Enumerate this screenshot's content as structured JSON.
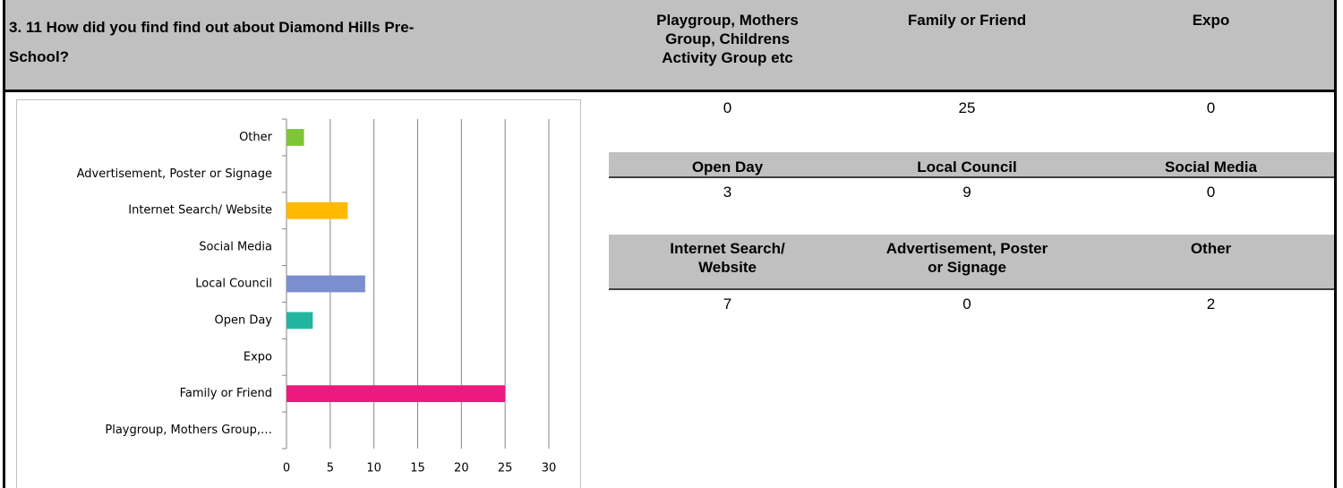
{
  "header": {
    "title_lines": [
      "3. 11 How did you find find out about Diamond Hills Pre-",
      "School?"
    ]
  },
  "table": {
    "groups": [
      {
        "headers": [
          [
            "Playgroup, Mothers",
            "Group, Childrens",
            "Activity Group etc"
          ],
          [
            "Family or Friend"
          ],
          [
            "Expo"
          ]
        ],
        "values": [
          0,
          25,
          0
        ]
      },
      {
        "headers": [
          [
            "Open Day"
          ],
          [
            "Local Council"
          ],
          [
            "Social Media"
          ]
        ],
        "values": [
          3,
          9,
          0
        ]
      },
      {
        "headers": [
          [
            "Internet Search/",
            "Website"
          ],
          [
            "Advertisement, Poster",
            "or Signage"
          ],
          [
            "Other"
          ]
        ],
        "values": [
          7,
          0,
          2
        ]
      }
    ]
  },
  "chart_data": {
    "type": "bar",
    "orientation": "horizontal",
    "categories": [
      "Playgroup, Mothers Group,…",
      "Family or Friend",
      "Expo",
      "Open Day",
      "Local Council",
      "Social Media",
      "Internet Search/ Website",
      "Advertisement, Poster or Signage",
      "Other"
    ],
    "values": [
      0,
      25,
      0,
      3,
      9,
      0,
      7,
      0,
      2
    ],
    "colors": [
      null,
      "#ec1a7e",
      null,
      "#22b6a0",
      "#7b8fcf",
      null,
      "#ffb900",
      null,
      "#7ec636"
    ],
    "xlim": [
      0,
      30
    ],
    "xticks": [
      0,
      5,
      10,
      15,
      20,
      25,
      30
    ],
    "grid": true
  }
}
